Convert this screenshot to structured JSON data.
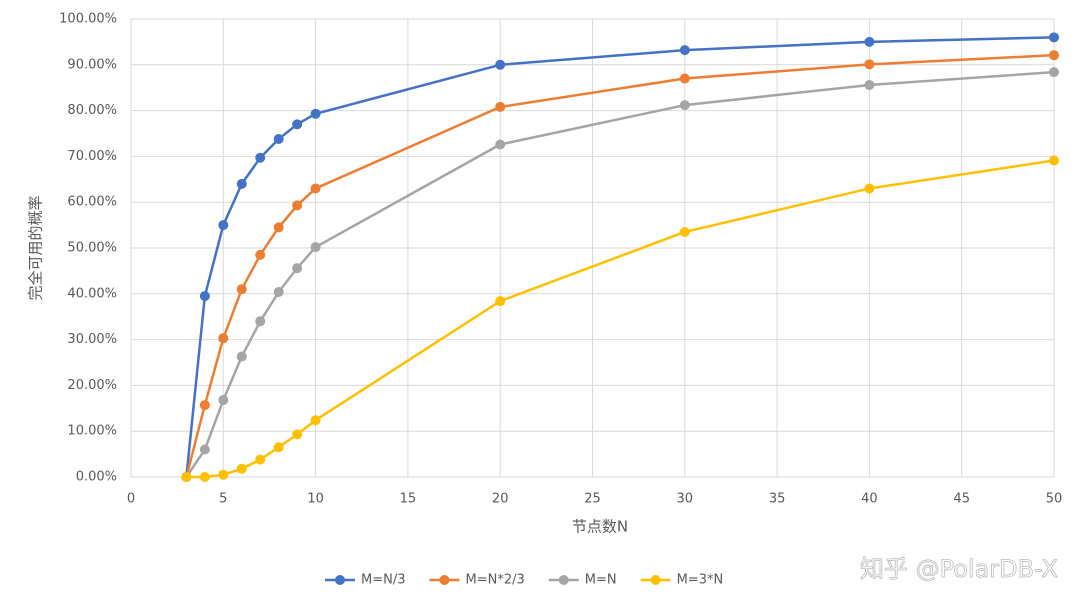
{
  "chart_data": {
    "type": "line",
    "x_label": "节点数N",
    "y_label": "完全可用的概率",
    "x": [
      3,
      4,
      5,
      6,
      7,
      8,
      9,
      10,
      20,
      30,
      40,
      50
    ],
    "series": [
      {
        "name": "M=N/3",
        "color": "#4472c4",
        "values": [
          0,
          39.5,
          55,
          64,
          69.7,
          73.8,
          77,
          79.3,
          90,
          93.2,
          95,
          96
        ]
      },
      {
        "name": "M=N*2/3",
        "color": "#ed7d31",
        "values": [
          0,
          15.7,
          30.3,
          41,
          48.5,
          54.5,
          59.3,
          63,
          80.8,
          87,
          90.1,
          92.1
        ]
      },
      {
        "name": "M=N",
        "color": "#a5a5a5",
        "values": [
          0,
          6,
          16.8,
          26.3,
          34,
          40.4,
          45.6,
          50.2,
          72.6,
          81.2,
          85.6,
          88.4
        ]
      },
      {
        "name": "M=3*N",
        "color": "#ffc000",
        "values": [
          0,
          0,
          0.5,
          1.8,
          3.8,
          6.5,
          9.3,
          12.4,
          38.4,
          53.5,
          63,
          69.1
        ]
      }
    ],
    "xlim": [
      0,
      50
    ],
    "xticks": [
      0,
      5,
      10,
      15,
      20,
      25,
      30,
      35,
      40,
      45,
      50
    ],
    "ylim": [
      0,
      100
    ],
    "yticks": [
      {
        "value": 0,
        "label": "0.00%"
      },
      {
        "value": 10,
        "label": "10.00%"
      },
      {
        "value": 20,
        "label": "20.00%"
      },
      {
        "value": 30,
        "label": "30.00%"
      },
      {
        "value": 40,
        "label": "40.00%"
      },
      {
        "value": 50,
        "label": "50.00%"
      },
      {
        "value": 60,
        "label": "60.00%"
      },
      {
        "value": 70,
        "label": "70.00%"
      },
      {
        "value": 80,
        "label": "80.00%"
      },
      {
        "value": 90,
        "label": "90.00%"
      },
      {
        "value": 100,
        "label": "100.00%"
      }
    ],
    "grid": true,
    "legend": "bottom",
    "watermark": "知乎 @PolarDB-X"
  }
}
